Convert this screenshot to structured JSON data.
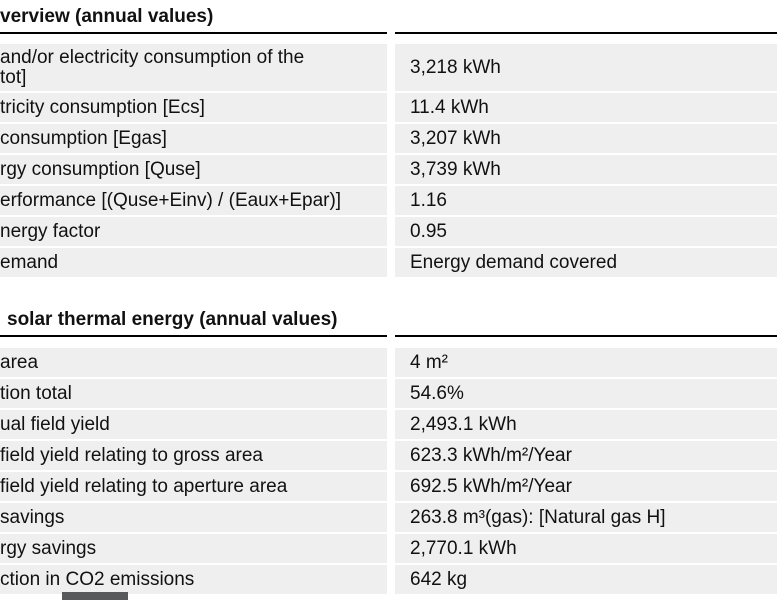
{
  "colors": {
    "row_background": "#efefef",
    "text": "#111111",
    "section_rule": "#000000",
    "partial_element": "#58595b"
  },
  "sections": [
    {
      "title": "verview (annual values)",
      "rows": [
        {
          "label": "and/or electricity consumption of the\ntot]",
          "value": "3,218 kWh"
        },
        {
          "label": "tricity consumption [Ecs]",
          "value": "11.4 kWh"
        },
        {
          "label": "consumption [Egas]",
          "value": "3,207 kWh"
        },
        {
          "label": "rgy consumption [Quse]",
          "value": "3,739 kWh"
        },
        {
          "label": "erformance [(Quse+Einv) / (Eaux+Epar)]",
          "value": "1.16"
        },
        {
          "label": "nergy factor",
          "value": "0.95"
        },
        {
          "label": "emand",
          "value": "Energy demand covered"
        }
      ]
    },
    {
      "title": "solar thermal energy (annual values)",
      "rows": [
        {
          "label": "area",
          "value": "4 m²"
        },
        {
          "label": "tion total",
          "value": "54.6%"
        },
        {
          "label": "ual field yield",
          "value": "2,493.1 kWh"
        },
        {
          "label": "field yield relating to gross area",
          "value": "623.3 kWh/m²/Year"
        },
        {
          "label": "field yield relating to aperture area",
          "value": "692.5 kWh/m²/Year"
        },
        {
          "label": "savings",
          "value": "263.8 m³(gas): [Natural gas H]"
        },
        {
          "label": "rgy savings",
          "value": "2,770.1 kWh"
        },
        {
          "label": "ction in CO2 emissions",
          "value": "642 kg"
        }
      ]
    }
  ]
}
